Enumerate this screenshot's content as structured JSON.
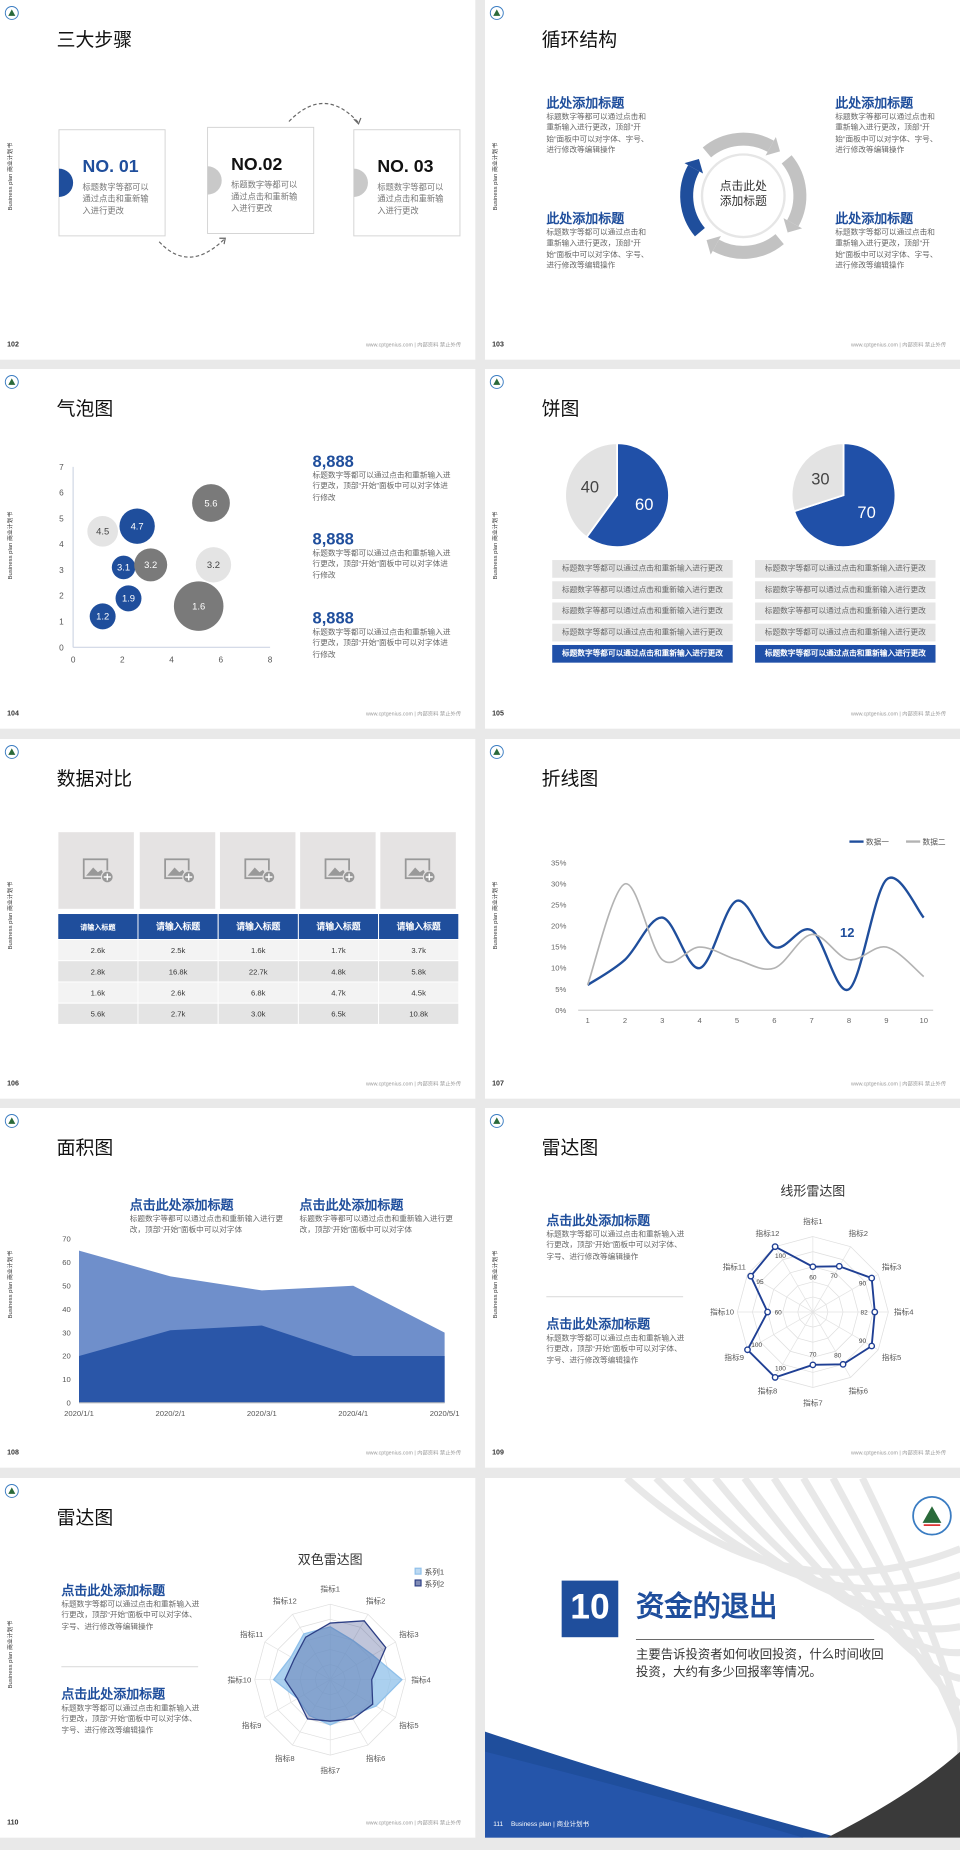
{
  "side_label": "Business plan 商业计划书",
  "footer": "www.cptgenius.com | 内部资料 禁止外传",
  "slides": [
    {
      "number": "102",
      "title": "三大步骤",
      "steps": [
        {
          "label": "NO. 01",
          "text": "标题数字等都可以通过点击和重新输入进行更改"
        },
        {
          "label": "NO.02",
          "text": "标题数字等都可以通过点击和重新输入进行更改"
        },
        {
          "label": "NO. 03",
          "text": "标题数字等都可以通过点击和重新输入进行更改"
        }
      ]
    },
    {
      "number": "103",
      "title": "循环结构",
      "center": "点击此处添加标题",
      "blocks": [
        {
          "title": "此处添加标题",
          "text": "标题数字等都可以通过点击和重新输入进行更改，顶部“开始”面板中可以对字体、字号、进行修改等编辑操作"
        },
        {
          "title": "此处添加标题",
          "text": "标题数字等都可以通过点击和重新输入进行更改，顶部“开始”面板中可以对字体、字号、进行修改等编辑操作"
        },
        {
          "title": "此处添加标题",
          "text": "标题数字等都可以通过点击和重新输入进行更改，顶部“开始”面板中可以对字体、字号、进行修改等编辑操作"
        },
        {
          "title": "此处添加标题",
          "text": "标题数字等都可以通过点击和重新输入进行更改，顶部“开始”面板中可以对字体、字号、进行修改等编辑操作"
        }
      ]
    },
    {
      "number": "104",
      "title": "气泡图",
      "chart": {
        "type": "bubble",
        "x": [
          1.2,
          2.25,
          2.05,
          3.15,
          1.2,
          2.6,
          5.6,
          5.7,
          5.1
        ],
        "y": [
          1.2,
          1.9,
          3.1,
          3.2,
          4.5,
          4.7,
          5.6,
          3.2,
          1.6
        ],
        "sizes": [
          11,
          11,
          10,
          14,
          13,
          15,
          16,
          15,
          21
        ],
        "colors": [
          "#1f4e9c",
          "#1f4e9c",
          "#1f4e9c",
          "#7a7a7a",
          "#e4e4e4",
          "#1f4e9c",
          "#7a7a7a",
          "#e4e4e4",
          "#7a7a7a"
        ],
        "xlim": [
          0,
          8
        ],
        "xticks": [
          0,
          2,
          4,
          6,
          8
        ],
        "ylim": [
          0,
          7
        ],
        "yticks": [
          0,
          1,
          2,
          3,
          4,
          5,
          6,
          7
        ]
      },
      "stats": [
        {
          "value": "8,888",
          "text": "标题数字等都可以通过点击和重新输入进行更改，顶部“开始”面板中可以对字体进行修改"
        },
        {
          "value": "8,888",
          "text": "标题数字等都可以通过点击和重新输入进行更改，顶部“开始”面板中可以对字体进行修改"
        },
        {
          "value": "8,888",
          "text": "标题数字等都可以通过点击和重新输入进行更改，顶部“开始”面板中可以对字体进行修改"
        }
      ]
    },
    {
      "number": "105",
      "title": "饼图",
      "charts": [
        {
          "type": "pie",
          "values": [
            60,
            40
          ],
          "colors": [
            "#2050a8",
            "#e3e3e3"
          ],
          "items": [
            "标题数字等都可以通过点击和重新输入进行更改",
            "标题数字等都可以通过点击和重新输入进行更改",
            "标题数字等都可以通过点击和重新输入进行更改",
            "标题数字等都可以通过点击和重新输入进行更改",
            "标题数字等都可以通过点击和重新输入进行更改"
          ]
        },
        {
          "type": "pie",
          "values": [
            70,
            30
          ],
          "colors": [
            "#2050a8",
            "#e3e3e3"
          ],
          "items": [
            "标题数字等都可以通过点击和重新输入进行更改",
            "标题数字等都可以通过点击和重新输入进行更改",
            "标题数字等都可以通过点击和重新输入进行更改",
            "标题数字等都可以通过点击和重新输入进行更改",
            "标题数字等都可以通过点击和重新输入进行更改"
          ]
        }
      ]
    },
    {
      "number": "106",
      "title": "数据对比",
      "table": {
        "header": [
          "请输入标题",
          "请输入标题",
          "请输入标题",
          "请输入标题",
          "请输入标题"
        ],
        "rows": [
          [
            "2.6k",
            "2.5k",
            "1.6k",
            "1.7k",
            "3.7k"
          ],
          [
            "2.8k",
            "16.8k",
            "22.7k",
            "4.8k",
            "5.8k"
          ],
          [
            "1.6k",
            "2.6k",
            "6.8k",
            "4.7k",
            "4.5k"
          ],
          [
            "5.6k",
            "2.7k",
            "3.0k",
            "6.5k",
            "10.8k"
          ]
        ]
      }
    },
    {
      "number": "107",
      "title": "折线图",
      "chart": {
        "type": "line",
        "x": [
          1,
          2,
          3,
          4,
          5,
          6,
          7,
          8,
          9,
          10
        ],
        "xlim": [
          1,
          10
        ],
        "xticks": [
          1,
          2,
          3,
          4,
          5,
          6,
          7,
          8,
          9,
          10
        ],
        "ylim": [
          0,
          35
        ],
        "yticks": [
          {
            "value": 0,
            "label": "0%"
          },
          {
            "value": 5,
            "label": "5%"
          },
          {
            "value": 10,
            "label": "10%"
          },
          {
            "value": 15,
            "label": "15%"
          },
          {
            "value": 20,
            "label": "20%"
          },
          {
            "value": 25,
            "label": "25%"
          },
          {
            "value": 30,
            "label": "30%"
          },
          {
            "value": 35,
            "label": "35%"
          }
        ],
        "series": [
          {
            "name": "数据一",
            "color": "#1f4e9c",
            "values": [
              6,
              12,
              22,
              10,
              26,
              15,
              19,
              5,
              31,
              22
            ]
          },
          {
            "name": "数据二",
            "color": "#b3b3b3",
            "values": [
              6,
              30,
              12,
              15,
              12,
              10,
              18,
              12,
              15,
              8
            ]
          }
        ],
        "annotation": "12"
      }
    },
    {
      "number": "108",
      "title": "面积图",
      "blocks": [
        {
          "title": "点击此处添加标题",
          "text": "标题数字等都可以通过点击和重新输入进行更改，顶部“开始”面板中可以对字体"
        },
        {
          "title": "点击此处添加标题",
          "text": "标题数字等都可以通过点击和重新输入进行更改，顶部“开始”面板中可以对字体"
        }
      ],
      "chart": {
        "type": "area",
        "categories": [
          "2020/1/1",
          "2020/2/1",
          "2020/3/1",
          "2020/4/1",
          "2020/5/1"
        ],
        "ylim": [
          0,
          70
        ],
        "yticks": [
          0,
          10,
          20,
          30,
          40,
          50,
          60,
          70
        ],
        "series": [
          {
            "color": "#6f8fcb",
            "values": [
              65,
              54,
              48,
              50,
              30
            ]
          },
          {
            "color": "#2a56a8",
            "values": [
              20,
              31,
              33,
              20,
              20
            ]
          }
        ]
      }
    },
    {
      "number": "109",
      "title": "雷达图",
      "blocks": [
        {
          "title": "点击此处添加标题",
          "text": "标题数字等都可以通过点击和重新输入进行更改，顶部“开始”面板中可以对字体、字号、进行修改等编辑操作"
        },
        {
          "title": "点击此处添加标题",
          "text": "标题数字等都可以通过点击和重新输入进行更改，顶部“开始”面板中可以对字体、字号、进行修改等编辑操作"
        }
      ],
      "chart": {
        "type": "radar",
        "title": "线形雷达图",
        "categories": [
          "指标1",
          "指标2",
          "指标3",
          "指标4",
          "指标5",
          "指标6",
          "指标7",
          "指标8",
          "指标9",
          "指标10",
          "指标11",
          "指标12"
        ],
        "rlim": [
          0,
          100
        ],
        "data_labels": true,
        "series": [
          {
            "color": "#1f3f94",
            "values": [
              60,
              70,
              90,
              82,
              90,
              80,
              70,
              100,
              100,
              60,
              95,
              100
            ]
          }
        ]
      }
    },
    {
      "number": "110",
      "title": "雷达图",
      "blocks": [
        {
          "title": "点击此处添加标题",
          "text": "标题数字等都可以通过点击和重新输入进行更改，顶部“开始”面板中可以对字体、字号、进行修改等编辑操作"
        },
        {
          "title": "点击此处添加标题",
          "text": "标题数字等都可以通过点击和重新输入进行更改，顶部“开始”面板中可以对字体、字号、进行修改等编辑操作"
        }
      ],
      "chart": {
        "type": "radar",
        "title": "双色雷达图",
        "categories": [
          "指标1",
          "指标2",
          "指标3",
          "指标4",
          "指标5",
          "指标6",
          "指标7",
          "指标8",
          "指标9",
          "指标10",
          "指标11",
          "指标12"
        ],
        "rlim": [
          0,
          100
        ],
        "data_labels": false,
        "series": [
          {
            "name": "系列1",
            "color": "#8fc0ea",
            "values": [
              70,
              60,
              65,
              95,
              70,
              55,
              60,
              55,
              50,
              75,
              60,
              70
            ]
          },
          {
            "name": "系列2",
            "color": "#2d3f85",
            "values": [
              75,
              90,
              85,
              55,
              65,
              60,
              55,
              60,
              50,
              60,
              55,
              65
            ]
          }
        ]
      }
    },
    {
      "number": "111",
      "badge": "10",
      "heading": "资金的退出",
      "text": "主要告诉投资者如何收回投资，什么时间收回投资，大约有多少回报率等情况。",
      "footer_label": "Business plan | 商业计划书"
    }
  ]
}
